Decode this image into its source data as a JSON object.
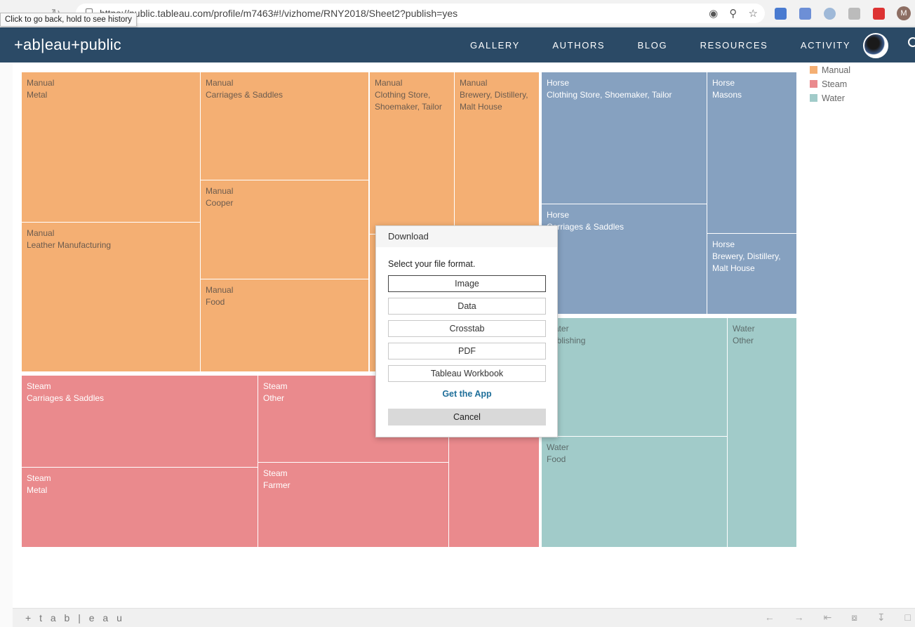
{
  "browser": {
    "url": "https://public.tableau.com/profile/m7463#!/vizhome/RNY2018/Sheet2?publish=yes",
    "tooltip": "Click to go back, hold to see history",
    "avatar_letter": "M"
  },
  "header": {
    "logo": "+ab|eau+public",
    "nav": [
      "GALLERY",
      "AUTHORS",
      "BLOG",
      "RESOURCES",
      "ACTIVITY"
    ]
  },
  "legend": [
    {
      "label": "Manual",
      "color": "#f4af73"
    },
    {
      "label": "Steam",
      "color": "#ea8a8d"
    },
    {
      "label": "Water",
      "color": "#a1cbc9"
    }
  ],
  "cells": {
    "m1": {
      "l1": "Manual",
      "l2": "Metal"
    },
    "m2": {
      "l1": "Manual",
      "l2": "Carriages & Saddles"
    },
    "m3": {
      "l1": "Manual",
      "l2": "Clothing Store, Shoemaker, Tailor"
    },
    "m4": {
      "l1": "Manual",
      "l2": "Brewery, Distillery, Malt House"
    },
    "m5": {
      "l1": "Manual",
      "l2": "Leather Manufacturing"
    },
    "m6": {
      "l1": "Manual",
      "l2": "Cooper"
    },
    "m7": {
      "l1": "Manual",
      "l2": "Food"
    },
    "h1": {
      "l1": "Horse",
      "l2": "Clothing Store, Shoemaker, Tailor"
    },
    "h2": {
      "l1": "Horse",
      "l2": "Masons"
    },
    "h3": {
      "l1": "Horse",
      "l2": "Carriages & Saddles"
    },
    "h4": {
      "l1": "Horse",
      "l2": "Brewery, Distillery, Malt House"
    },
    "s1": {
      "l1": "Steam",
      "l2": "Carriages & Saddles"
    },
    "s2": {
      "l1": "Steam",
      "l2": "Other"
    },
    "s3": {
      "l1": "Steam",
      "l2": "Metal"
    },
    "s4": {
      "l1": "Steam",
      "l2": "Farmer"
    },
    "w1": {
      "l1": "Water",
      "l2": "Publishing"
    },
    "w2": {
      "l1": "Water",
      "l2": "Other"
    },
    "w3": {
      "l1": "Water",
      "l2": "Food"
    }
  },
  "dialog": {
    "title": "Download",
    "prompt": "Select your file format.",
    "formats": [
      "Image",
      "Data",
      "Crosstab",
      "PDF",
      "Tableau Workbook"
    ],
    "get_app": "Get the App",
    "cancel": "Cancel"
  },
  "footer": {
    "logo": "+ t a b | e a u"
  }
}
